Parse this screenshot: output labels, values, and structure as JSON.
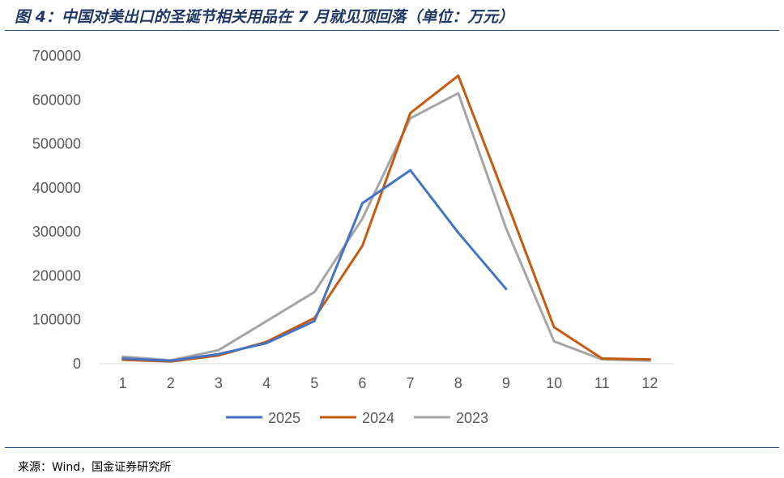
{
  "header": {
    "title": "图 4：中国对美出口的圣诞节相关用品在 7 月就见顶回落（单位：万元）"
  },
  "footer": {
    "source": "来源：Wind，国金证券研究所"
  },
  "chart_data": {
    "type": "line",
    "title": "",
    "xlabel": "",
    "ylabel": "",
    "x": [
      "1",
      "2",
      "3",
      "4",
      "5",
      "6",
      "7",
      "8",
      "9",
      "10",
      "11",
      "12"
    ],
    "y_ticks": [
      "0",
      "100000",
      "200000",
      "300000",
      "400000",
      "500000",
      "600000",
      "700000"
    ],
    "ylim": [
      0,
      700000
    ],
    "grid": false,
    "legend": "bottom",
    "series": [
      {
        "name": "2025",
        "color": "#4472c4",
        "values": [
          12000,
          7000,
          22000,
          47000,
          97000,
          365000,
          440000,
          298000,
          170000,
          null,
          null,
          null
        ]
      },
      {
        "name": "2024",
        "color": "#c55a11",
        "values": [
          9000,
          5000,
          19000,
          50000,
          104000,
          268000,
          570000,
          655000,
          372000,
          83000,
          12000,
          10000
        ]
      },
      {
        "name": "2023",
        "color": "#a5a5a5",
        "values": [
          16000,
          8000,
          31000,
          97000,
          163000,
          330000,
          558000,
          615000,
          308000,
          51000,
          10000,
          7000
        ]
      }
    ]
  }
}
